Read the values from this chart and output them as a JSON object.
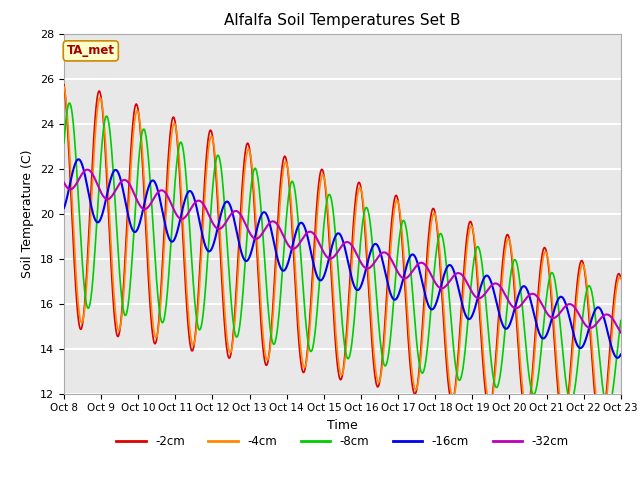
{
  "title": "Alfalfa Soil Temperatures Set B",
  "xlabel": "Time",
  "ylabel": "Soil Temperature (C)",
  "ylim": [
    12,
    28
  ],
  "xlim": [
    0,
    15
  ],
  "annotation_text": "TA_met",
  "annotation_bg": "#FFFFCC",
  "annotation_border": "#CC8800",
  "annotation_text_color": "#AA0000",
  "bg_color": "#E8E8E8",
  "legend_labels": [
    "-2cm",
    "-4cm",
    "-8cm",
    "-16cm",
    "-32cm"
  ],
  "line_colors": [
    "#DD0000",
    "#FF8800",
    "#00CC00",
    "#0000EE",
    "#BB00BB"
  ],
  "line_widths": [
    1.2,
    1.2,
    1.2,
    1.5,
    1.5
  ],
  "tick_labels": [
    "Oct 8",
    "Oct 9",
    "Oct 10",
    "Oct 11",
    "Oct 12",
    "Oct 13",
    "Oct 14",
    "Oct 15",
    "Oct 16",
    "Oct 17",
    "Oct 18",
    "Oct 19",
    "Oct 20",
    "Oct 21",
    "Oct 22",
    "Oct 23"
  ],
  "grid_color": "#FFFFFF",
  "yticks": [
    12,
    14,
    16,
    18,
    20,
    22,
    24,
    26,
    28
  ],
  "figsize": [
    6.4,
    4.8
  ],
  "dpi": 100
}
